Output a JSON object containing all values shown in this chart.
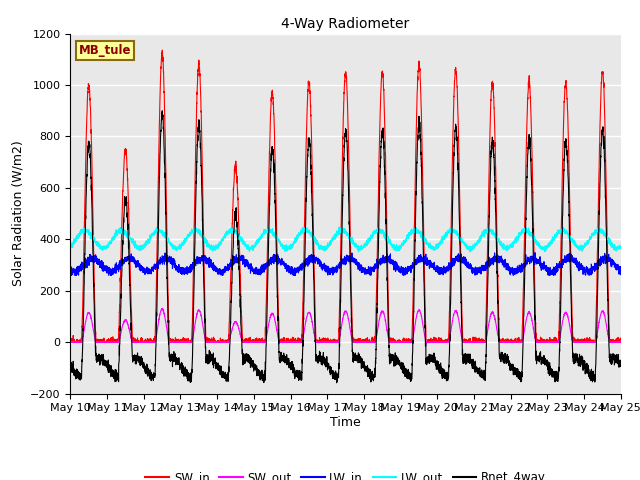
{
  "title": "4-Way Radiometer",
  "xlabel": "Time",
  "ylabel": "Solar Radiation (W/m2)",
  "ylim": [
    -200,
    1200
  ],
  "yticks": [
    -200,
    0,
    200,
    400,
    600,
    800,
    1000,
    1200
  ],
  "station_label": "MB_tule",
  "x_tick_labels": [
    "May 10",
    "May 11",
    "May 12",
    "May 13",
    "May 14",
    "May 15",
    "May 16",
    "May 17",
    "May 18",
    "May 19",
    "May 20",
    "May 21",
    "May 22",
    "May 23",
    "May 24",
    "May 25"
  ],
  "legend_entries": [
    "SW_in",
    "SW_out",
    "LW_in",
    "LW_out",
    "Rnet_4way"
  ],
  "legend_colors": [
    "#ff0000",
    "#ff00ff",
    "#0000ff",
    "#00ffff",
    "#000000"
  ],
  "plot_bg_color": "#e8e8e8",
  "grid_color": "#ffffff",
  "num_days": 15,
  "pts_per_day": 288,
  "sw_in_peaks": [
    1000,
    750,
    1120,
    1080,
    680,
    970,
    1010,
    1050,
    1050,
    1080,
    1060,
    1010,
    1010,
    1010,
    1050
  ],
  "lw_in_base": 300,
  "lw_out_base": 400,
  "sw_out_ratio": 0.115,
  "rnet_night": -100,
  "line_width": 0.8
}
